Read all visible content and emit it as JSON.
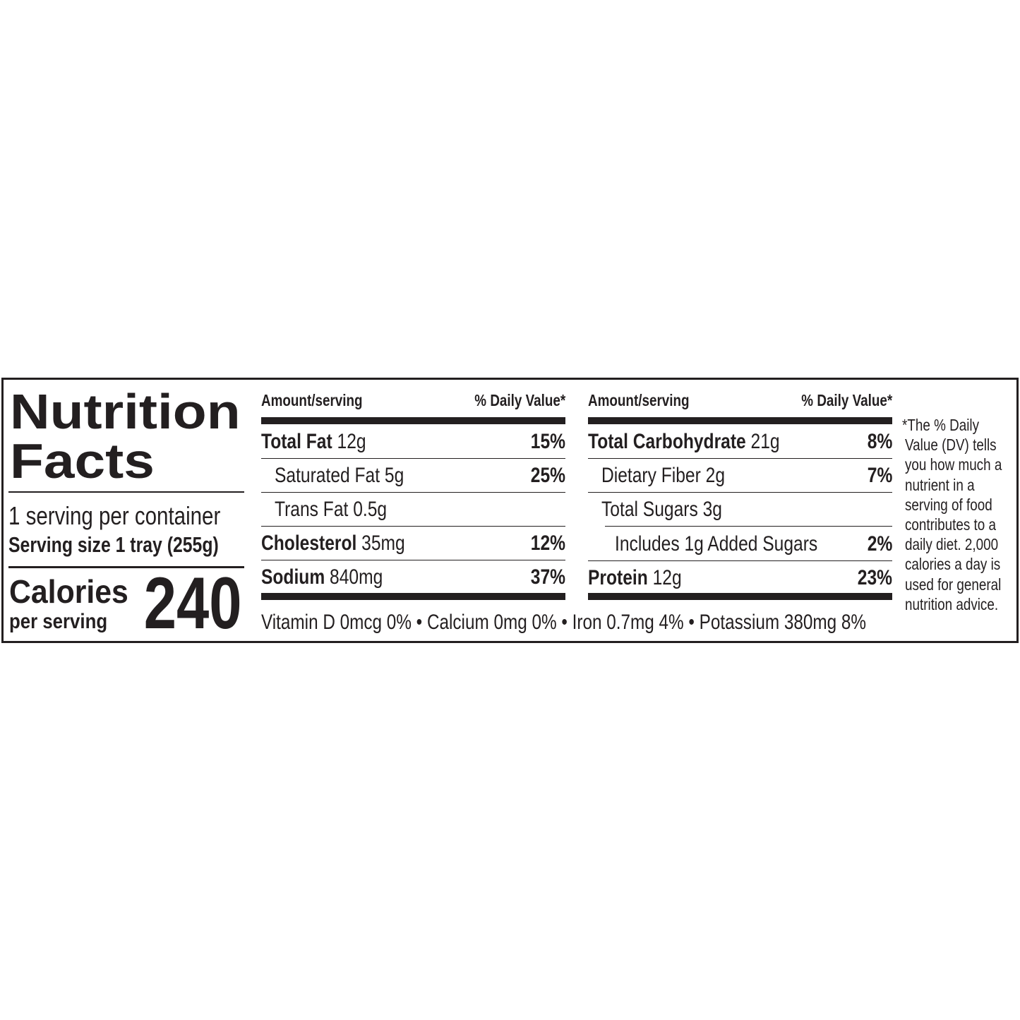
{
  "title_line1": "Nutrition",
  "title_line2": "Facts",
  "servings_per_container": "1 serving per container",
  "serving_size": "Serving size 1 tray (255g)",
  "calories_label": "Calories",
  "calories_sublabel": "per serving",
  "calories_value": "240",
  "column_header": {
    "amount": "Amount/serving",
    "dv": "% Daily Value*"
  },
  "left_rows": [
    {
      "name": "Total Fat",
      "amount": "12g",
      "dv": "15%"
    },
    {
      "name": "Saturated Fat",
      "amount": "5g",
      "dv": "25%"
    },
    {
      "name": "Trans Fat",
      "amount": "0.5g",
      "dv": ""
    },
    {
      "name": "Cholesterol",
      "amount": "35mg",
      "dv": "12%"
    },
    {
      "name": "Sodium",
      "amount": "840mg",
      "dv": "37%"
    }
  ],
  "right_rows": [
    {
      "name": "Total Carbohydrate",
      "amount": "21g",
      "dv": "8%"
    },
    {
      "name": "Dietary Fiber",
      "amount": "2g",
      "dv": "7%"
    },
    {
      "name": "Total Sugars",
      "amount": "3g",
      "dv": ""
    },
    {
      "name": "Includes 1g Added Sugars",
      "amount": "",
      "dv": "2%"
    },
    {
      "name": "Protein",
      "amount": "12g",
      "dv": "23%"
    }
  ],
  "micronutrients": "Vitamin D 0mcg 0% • Calcium 0mg 0% • Iron 0.7mg 4% • Potassium 380mg 8%",
  "footnote_lines": [
    "*The % Daily",
    "Value (DV) tells",
    "you how much a",
    "nutrient in a",
    "serving of food",
    "contributes to a",
    "daily diet. 2,000",
    "calories a day is",
    "used for general",
    "nutrition advice."
  ]
}
